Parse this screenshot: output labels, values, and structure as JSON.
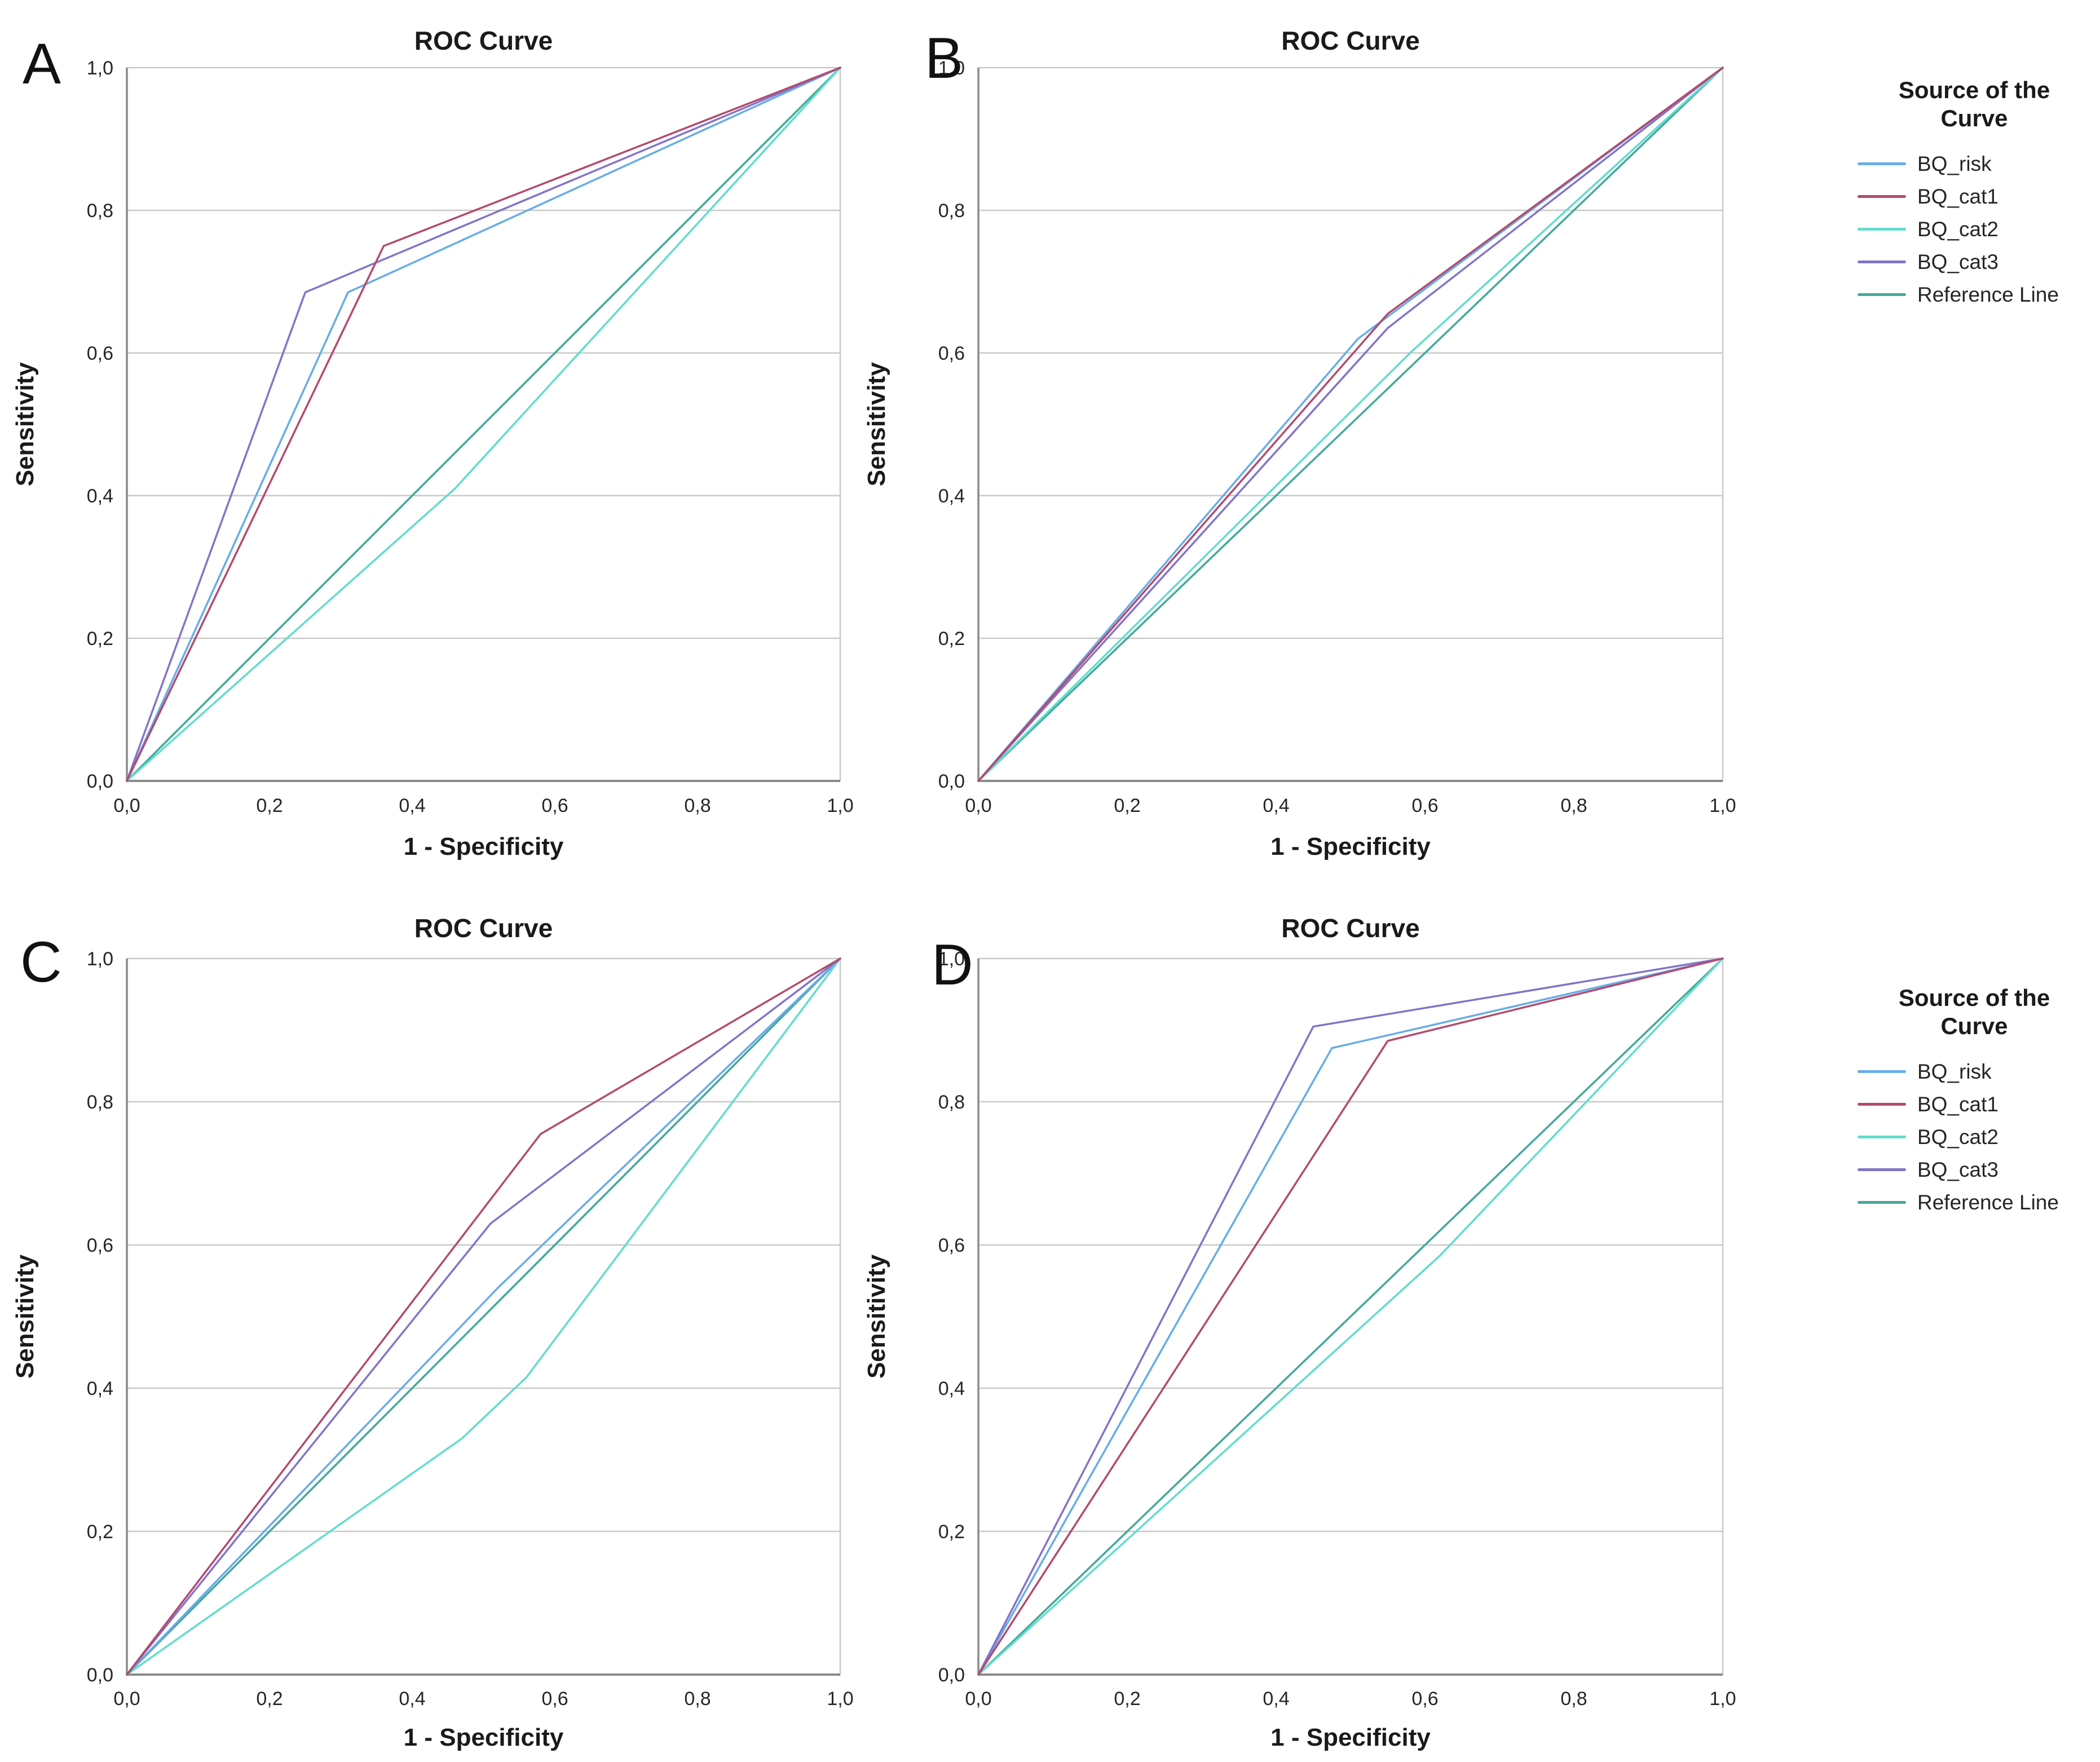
{
  "figure": {
    "background": "#FFFFFF",
    "title_text": "ROC Curve",
    "panel_letters": [
      "A",
      "B",
      "C",
      "D"
    ]
  },
  "style": {
    "grid_color": "#C9C9C9",
    "axis_color": "#8A8A8A",
    "right_border_color": "#C9C9C9",
    "text_color": "#1A1A1A",
    "curve_width": 3.5
  },
  "legend": {
    "title": "Source of the Curve",
    "entries": [
      {
        "label": "BQ_risk",
        "color": "#68ACE8"
      },
      {
        "label": "BQ_cat1",
        "color": "#B34A6F"
      },
      {
        "label": "BQ_cat2",
        "color": "#62DCCD"
      },
      {
        "label": "BQ_cat3",
        "color": "#8374C8"
      },
      {
        "label": "Reference Line",
        "color": "#44A89A"
      }
    ]
  },
  "chart_data": [
    {
      "panel": "A",
      "type": "line",
      "title": "ROC Curve",
      "xlabel": "1 - Specificity",
      "ylabel": "Sensitivity",
      "xlim": [
        0,
        1
      ],
      "ylim": [
        0,
        1
      ],
      "grid": "horizontal",
      "legend_position": "right-outside",
      "xticks": {
        "values": [
          0,
          0.2,
          0.4,
          0.6,
          0.8,
          1.0
        ],
        "labels": [
          "0,0",
          "0,2",
          "0,4",
          "0,6",
          "0,8",
          "1,0"
        ]
      },
      "yticks": {
        "values": [
          0,
          0.2,
          0.4,
          0.6,
          0.8,
          1.0
        ],
        "labels": [
          "0,0",
          "0,2",
          "0,4",
          "0,6",
          "0,8",
          "1,0"
        ]
      },
      "series": [
        {
          "name": "Reference Line",
          "points": [
            [
              0,
              0
            ],
            [
              1,
              1
            ]
          ]
        },
        {
          "name": "BQ_cat2",
          "points": [
            [
              0,
              0
            ],
            [
              0.46,
              0.41
            ],
            [
              1,
              1
            ]
          ]
        },
        {
          "name": "BQ_risk",
          "points": [
            [
              0,
              0
            ],
            [
              0.31,
              0.685
            ],
            [
              1,
              1
            ]
          ]
        },
        {
          "name": "BQ_cat3",
          "points": [
            [
              0,
              0
            ],
            [
              0.25,
              0.685
            ],
            [
              1,
              1
            ]
          ]
        },
        {
          "name": "BQ_cat1",
          "points": [
            [
              0,
              0
            ],
            [
              0.36,
              0.75
            ],
            [
              1,
              1
            ]
          ]
        }
      ]
    },
    {
      "panel": "B",
      "type": "line",
      "title": "ROC Curve",
      "xlabel": "1 - Specificity",
      "ylabel": "Sensitivity",
      "xlim": [
        0,
        1
      ],
      "ylim": [
        0,
        1
      ],
      "grid": "horizontal",
      "legend_position": "right-outside",
      "xticks": {
        "values": [
          0,
          0.2,
          0.4,
          0.6,
          0.8,
          1.0
        ],
        "labels": [
          "0,0",
          "0,2",
          "0,4",
          "0,6",
          "0,8",
          "1,0"
        ]
      },
      "yticks": {
        "values": [
          0,
          0.2,
          0.4,
          0.6,
          0.8,
          1.0
        ],
        "labels": [
          "0,0",
          "0,2",
          "0,4",
          "0,6",
          "0,8",
          "1,0"
        ]
      },
      "series": [
        {
          "name": "Reference Line",
          "points": [
            [
              0,
              0
            ],
            [
              1,
              1
            ]
          ]
        },
        {
          "name": "BQ_cat2",
          "points": [
            [
              0,
              0
            ],
            [
              0.58,
              0.6
            ],
            [
              1,
              1
            ]
          ]
        },
        {
          "name": "BQ_risk",
          "points": [
            [
              0,
              0
            ],
            [
              0.51,
              0.62
            ],
            [
              1,
              1
            ]
          ]
        },
        {
          "name": "BQ_cat3",
          "points": [
            [
              0,
              0
            ],
            [
              0.55,
              0.635
            ],
            [
              1,
              1
            ]
          ]
        },
        {
          "name": "BQ_cat1",
          "points": [
            [
              0,
              0
            ],
            [
              0.55,
              0.655
            ],
            [
              1,
              1
            ]
          ]
        }
      ]
    },
    {
      "panel": "C",
      "type": "line",
      "title": "ROC Curve",
      "xlabel": "1 - Specificity",
      "ylabel": "Sensitivity",
      "xlim": [
        0,
        1
      ],
      "ylim": [
        0,
        1
      ],
      "grid": "horizontal",
      "legend_position": "right-outside",
      "xticks": {
        "values": [
          0,
          0.2,
          0.4,
          0.6,
          0.8,
          1.0
        ],
        "labels": [
          "0,0",
          "0,2",
          "0,4",
          "0,6",
          "0,8",
          "1,0"
        ]
      },
      "yticks": {
        "values": [
          0,
          0.2,
          0.4,
          0.6,
          0.8,
          1.0
        ],
        "labels": [
          "0,0",
          "0,2",
          "0,4",
          "0,6",
          "0,8",
          "1,0"
        ]
      },
      "series": [
        {
          "name": "Reference Line",
          "points": [
            [
              0,
              0
            ],
            [
              1,
              1
            ]
          ]
        },
        {
          "name": "BQ_cat2",
          "points": [
            [
              0,
              0
            ],
            [
              0.47,
              0.33
            ],
            [
              0.56,
              0.415
            ],
            [
              1,
              1
            ]
          ]
        },
        {
          "name": "BQ_risk",
          "points": [
            [
              0,
              0
            ],
            [
              0.52,
              0.54
            ],
            [
              1,
              1
            ]
          ]
        },
        {
          "name": "BQ_cat3",
          "points": [
            [
              0,
              0
            ],
            [
              0.51,
              0.63
            ],
            [
              1,
              1
            ]
          ]
        },
        {
          "name": "BQ_cat1",
          "points": [
            [
              0,
              0
            ],
            [
              0.58,
              0.755
            ],
            [
              1,
              1
            ]
          ]
        }
      ]
    },
    {
      "panel": "D",
      "type": "line",
      "title": "ROC Curve",
      "xlabel": "1 - Specificity",
      "ylabel": "Sensitivity",
      "xlim": [
        0,
        1
      ],
      "ylim": [
        0,
        1
      ],
      "grid": "horizontal",
      "legend_position": "right-outside",
      "xticks": {
        "values": [
          0,
          0.2,
          0.4,
          0.6,
          0.8,
          1.0
        ],
        "labels": [
          "0,0",
          "0,2",
          "0,4",
          "0,6",
          "0,8",
          "1,0"
        ]
      },
      "yticks": {
        "values": [
          0,
          0.2,
          0.4,
          0.6,
          0.8,
          1.0
        ],
        "labels": [
          "0,0",
          "0,2",
          "0,4",
          "0,6",
          "0,8",
          "1,0"
        ]
      },
      "series": [
        {
          "name": "Reference Line",
          "points": [
            [
              0,
              0
            ],
            [
              1,
              1
            ]
          ]
        },
        {
          "name": "BQ_cat2",
          "points": [
            [
              0,
              0
            ],
            [
              0.62,
              0.585
            ],
            [
              1,
              1
            ]
          ]
        },
        {
          "name": "BQ_risk",
          "points": [
            [
              0,
              0
            ],
            [
              0.475,
              0.875
            ],
            [
              1,
              1
            ]
          ]
        },
        {
          "name": "BQ_cat3",
          "points": [
            [
              0,
              0
            ],
            [
              0.45,
              0.905
            ],
            [
              1,
              1
            ]
          ]
        },
        {
          "name": "BQ_cat1",
          "points": [
            [
              0,
              0
            ],
            [
              0.55,
              0.885
            ],
            [
              1,
              1
            ]
          ]
        }
      ]
    }
  ]
}
